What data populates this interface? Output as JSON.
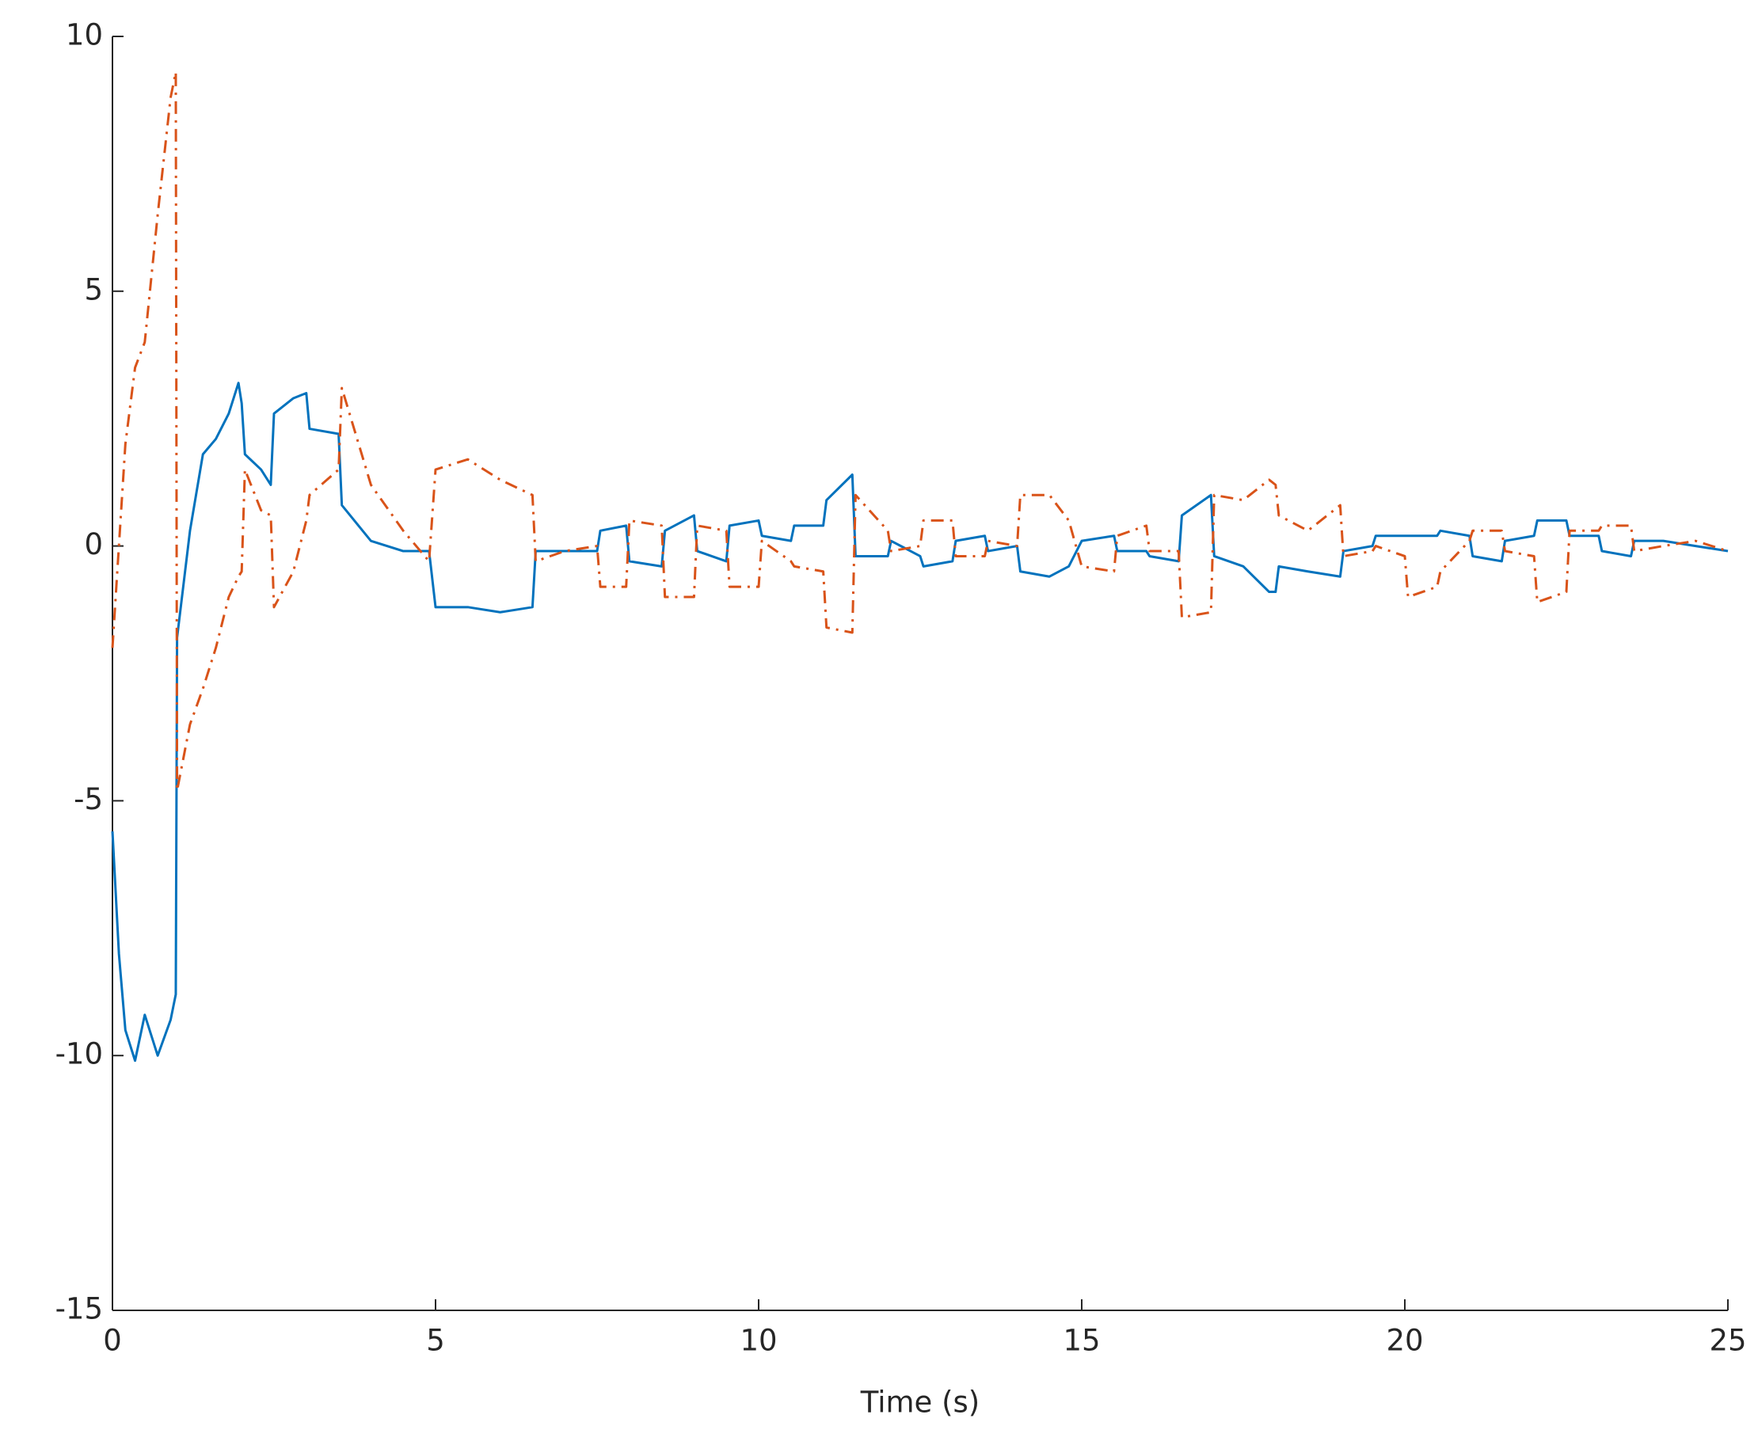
{
  "chart_data": {
    "type": "line",
    "xlabel": "Time (s)",
    "x": [
      0,
      0.1,
      0.2,
      0.35,
      0.5,
      0.7,
      0.9,
      0.98,
      1.0,
      1.2,
      1.4,
      1.6,
      1.8,
      1.95,
      2.0,
      2.05,
      2.3,
      2.45,
      2.5,
      2.8,
      3.0,
      3.05,
      3.5,
      3.55,
      4.0,
      4.5,
      4.9,
      5.0,
      5.5,
      6.0,
      6.5,
      6.55,
      7.0,
      7.5,
      7.55,
      7.95,
      8.0,
      8.5,
      8.55,
      9.0,
      9.05,
      9.5,
      9.55,
      10.0,
      10.05,
      10.5,
      10.55,
      11.0,
      11.05,
      11.45,
      11.5,
      12.0,
      12.05,
      12.5,
      12.55,
      13.0,
      13.05,
      13.5,
      13.55,
      14.0,
      14.05,
      14.5,
      14.8,
      15.0,
      15.5,
      15.55,
      16.0,
      16.05,
      16.5,
      16.55,
      17.0,
      17.05,
      17.5,
      17.9,
      18.0,
      18.05,
      18.5,
      19.0,
      19.05,
      19.5,
      19.55,
      20.0,
      20.05,
      20.5,
      20.55,
      21.0,
      21.05,
      21.5,
      21.55,
      22.0,
      22.05,
      22.5,
      22.55,
      23.0,
      23.05,
      23.5,
      23.55,
      24.0,
      24.5,
      25.0
    ],
    "series": [
      {
        "color": "#0072bd",
        "dash": "solid",
        "values": [
          -5.6,
          -8,
          -9.5,
          -10.1,
          -9.2,
          -10,
          -9.3,
          -8.8,
          -1.8,
          0.3,
          1.8,
          2.1,
          2.6,
          3.2,
          2.8,
          1.8,
          1.5,
          1.2,
          2.6,
          2.9,
          3.0,
          2.3,
          2.2,
          0.8,
          0.1,
          -0.1,
          -0.1,
          -1.2,
          -1.2,
          -1.3,
          -1.2,
          -0.1,
          -0.1,
          -0.1,
          0.3,
          0.4,
          -0.3,
          -0.4,
          0.3,
          0.6,
          -0.1,
          -0.3,
          0.4,
          0.5,
          0.2,
          0.1,
          0.4,
          0.4,
          0.9,
          1.4,
          -0.2,
          -0.2,
          0.1,
          -0.2,
          -0.4,
          -0.3,
          0.1,
          0.2,
          -0.1,
          0,
          -0.5,
          -0.6,
          -0.4,
          0.1,
          0.2,
          -0.1,
          -0.1,
          -0.2,
          -0.3,
          0.6,
          1.0,
          -0.2,
          -0.4,
          -0.9,
          -0.9,
          -0.4,
          -0.5,
          -0.6,
          -0.1,
          0,
          0.2,
          0.2,
          0.2,
          0.2,
          0.3,
          0.2,
          -0.2,
          -0.3,
          0.1,
          0.2,
          0.5,
          0.5,
          0.2,
          0.2,
          -0.1,
          -0.2,
          0.1,
          0.1,
          0,
          -0.1
        ]
      },
      {
        "color": "#d95319",
        "dash": "dashdot",
        "values": [
          -2.0,
          0,
          2.0,
          3.5,
          4.0,
          6.5,
          8.8,
          9.3,
          -4.8,
          -3.5,
          -2.8,
          -2.0,
          -1.0,
          -0.6,
          -0.5,
          1.5,
          0.7,
          0.6,
          -1.2,
          -0.5,
          0.5,
          1.0,
          1.5,
          3.1,
          1.2,
          0.3,
          -0.3,
          1.5,
          1.7,
          1.3,
          1.0,
          -0.3,
          -0.1,
          0,
          -0.8,
          -0.8,
          0.5,
          0.4,
          -1.0,
          -1.0,
          0.4,
          0.3,
          -0.8,
          -0.8,
          0.1,
          -0.3,
          -0.4,
          -0.5,
          -1.6,
          -1.7,
          1.0,
          0.3,
          -0.1,
          0,
          0.5,
          0.5,
          -0.2,
          -0.2,
          0.1,
          0,
          1.0,
          1.0,
          0.5,
          -0.4,
          -0.5,
          0.2,
          0.4,
          -0.1,
          -0.1,
          -1.4,
          -1.3,
          1.0,
          0.9,
          1.3,
          1.2,
          0.6,
          0.3,
          0.8,
          -0.2,
          -0.1,
          0,
          -0.2,
          -1.0,
          -0.8,
          -0.5,
          0.1,
          0.3,
          0.3,
          -0.1,
          -0.2,
          -1.1,
          -0.9,
          0.3,
          0.3,
          0.4,
          0.4,
          -0.1,
          0,
          0.1,
          -0.1
        ]
      }
    ],
    "xlim": [
      0,
      25
    ],
    "xticks": [
      0,
      5,
      10,
      15,
      20,
      25
    ],
    "ylim": [
      -15,
      10
    ],
    "yticks": [
      -15,
      -10,
      -5,
      0,
      5,
      10
    ],
    "grid": false
  }
}
